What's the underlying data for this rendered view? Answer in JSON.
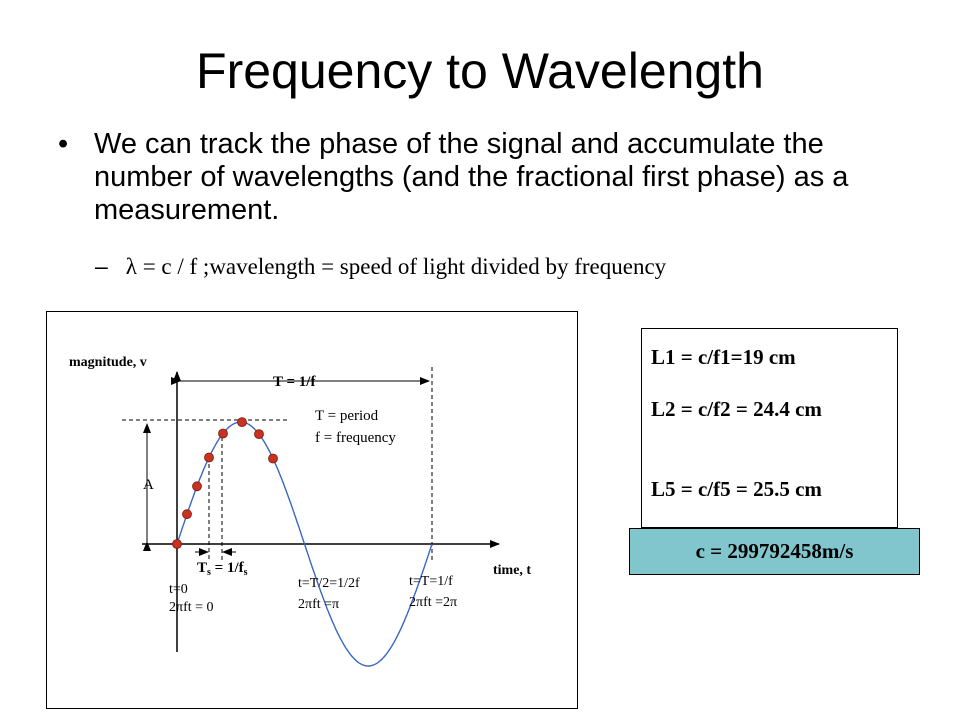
{
  "slide": {
    "title": "Frequency to Wavelength",
    "bullet": "We can track the phase of the signal and accumulate the number of wavelengths (and the fractional first phase) as a measurement.",
    "sub_bullet": "λ = c / f ;wavelength = speed of light divided by frequency"
  },
  "figure": {
    "ylabel": "magnitude, v",
    "xlabel": "time, t",
    "period_label": "T = 1/f",
    "legend_period": "T = period",
    "legend_freq": "f = frequency",
    "amplitude_label": "A",
    "sample_label": "T",
    "sample_sub": "s",
    "sample_eq": " = 1/f",
    "sample_eq_sub": "s",
    "t0_label": "t=0",
    "t0_phase": "2πft = 0",
    "thalf_label": "t=T/2=1/2f",
    "thalf_phase": "2πft =π",
    "tfull_label": "t=T=1/f",
    "tfull_phase": "2πft =2π"
  },
  "wavelengths": {
    "l1": "L1 = c/f1=19 cm",
    "l2": "L2 = c/f2 = 24.4 cm",
    "l5": "L5 = c/f5 = 25.5 cm"
  },
  "speed": "c = 299792458m/s"
}
